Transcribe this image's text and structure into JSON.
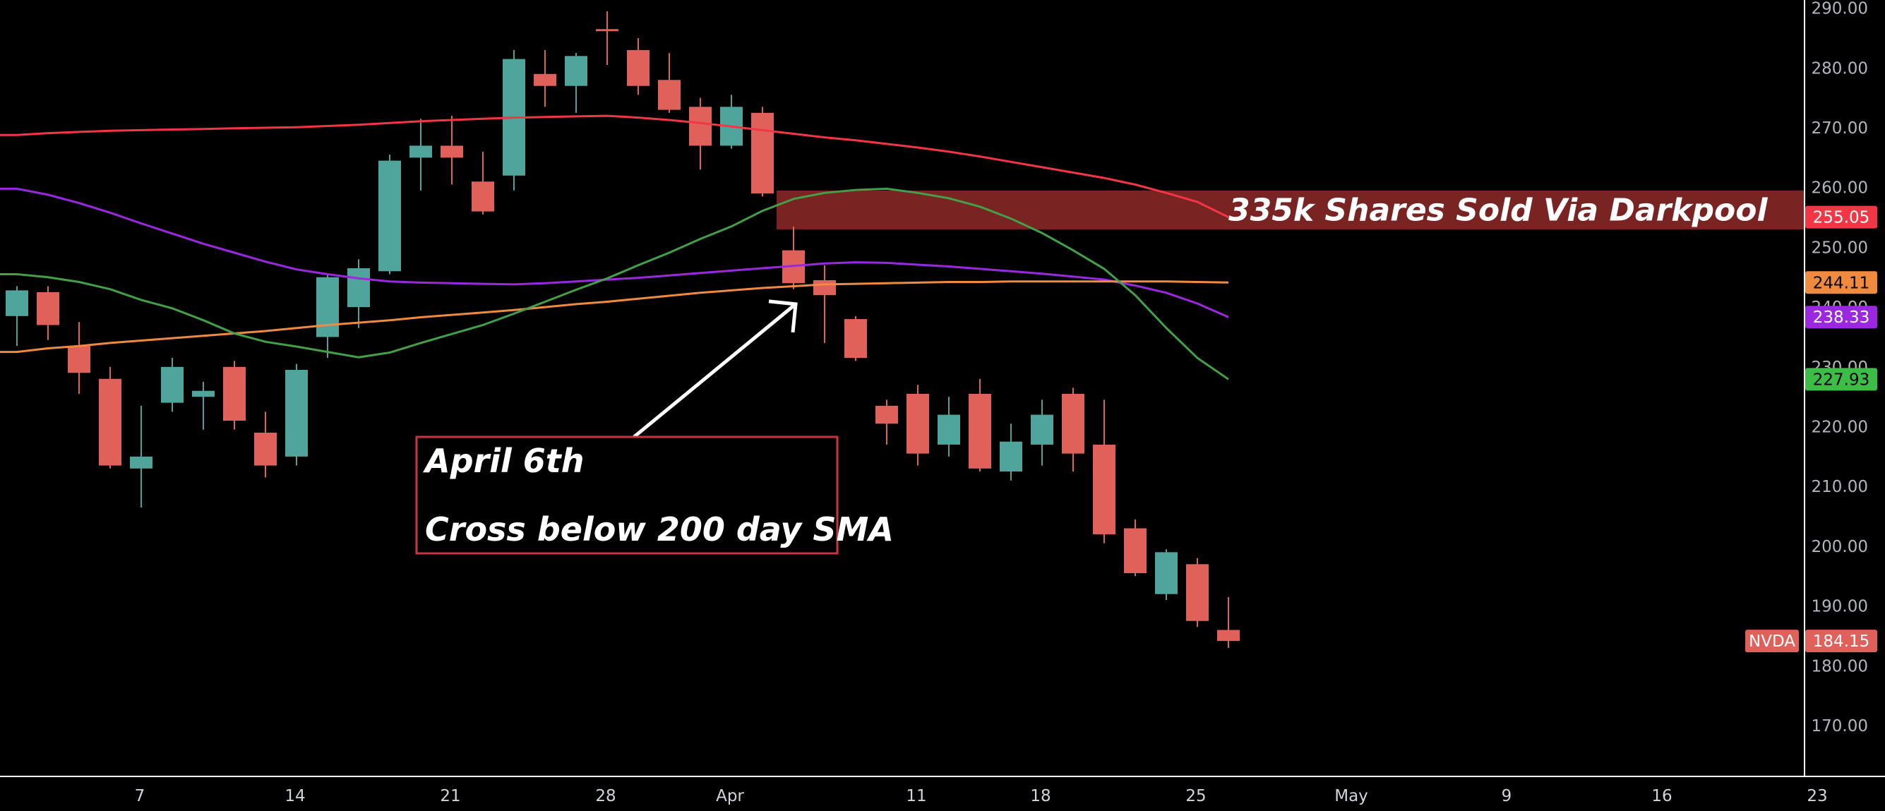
{
  "chart_data": {
    "type": "candlestick",
    "symbol": "NVDA",
    "last_price": "184.15",
    "ylim": [
      162,
      292
    ],
    "y_ticks": [
      "170.00",
      "180.00",
      "190.00",
      "200.00",
      "210.00",
      "220.00",
      "230.00",
      "240.00",
      "250.00",
      "260.00",
      "270.00",
      "280.00",
      "290.00"
    ],
    "x_ticks": [
      {
        "label": "7",
        "index": 4
      },
      {
        "label": "14",
        "index": 9
      },
      {
        "label": "21",
        "index": 14
      },
      {
        "label": "28",
        "index": 19
      },
      {
        "label": "Apr",
        "index": 23
      },
      {
        "label": "11",
        "index": 29
      },
      {
        "label": "18",
        "index": 33
      },
      {
        "label": "25",
        "index": 38
      },
      {
        "label": "May",
        "index": 43
      },
      {
        "label": "9",
        "index": 48
      },
      {
        "label": "16",
        "index": 53
      },
      {
        "label": "23",
        "index": 58
      }
    ],
    "candles": [
      {
        "o": 238.5,
        "h": 243.5,
        "l": 233.5,
        "c": 242.8
      },
      {
        "o": 242.5,
        "h": 243.5,
        "l": 234.5,
        "c": 237.0
      },
      {
        "o": 233.5,
        "h": 237.5,
        "l": 225.5,
        "c": 229.0
      },
      {
        "o": 228.0,
        "h": 230.0,
        "l": 213.0,
        "c": 213.5
      },
      {
        "o": 213.0,
        "h": 223.5,
        "l": 206.5,
        "c": 215.0
      },
      {
        "o": 224.0,
        "h": 231.5,
        "l": 222.5,
        "c": 230.0
      },
      {
        "o": 225.0,
        "h": 227.5,
        "l": 219.5,
        "c": 226.0
      },
      {
        "o": 230.0,
        "h": 231.0,
        "l": 219.5,
        "c": 221.0
      },
      {
        "o": 219.0,
        "h": 222.5,
        "l": 211.5,
        "c": 213.5
      },
      {
        "o": 215.0,
        "h": 230.5,
        "l": 213.5,
        "c": 229.5
      },
      {
        "o": 235.0,
        "h": 245.5,
        "l": 231.5,
        "c": 245.0
      },
      {
        "o": 240.0,
        "h": 248.0,
        "l": 236.5,
        "c": 246.5
      },
      {
        "o": 246.0,
        "h": 265.5,
        "l": 245.5,
        "c": 264.5
      },
      {
        "o": 265.0,
        "h": 271.5,
        "l": 259.5,
        "c": 267.0
      },
      {
        "o": 267.0,
        "h": 272.0,
        "l": 260.5,
        "c": 265.0
      },
      {
        "o": 261.0,
        "h": 266.0,
        "l": 255.5,
        "c": 256.0
      },
      {
        "o": 262.0,
        "h": 283.0,
        "l": 259.5,
        "c": 281.5
      },
      {
        "o": 279.0,
        "h": 283.0,
        "l": 273.5,
        "c": 277.0
      },
      {
        "o": 277.0,
        "h": 282.5,
        "l": 272.5,
        "c": 282.0
      },
      {
        "o": 286.5,
        "h": 289.5,
        "l": 280.5,
        "c": 286.3
      },
      {
        "o": 283.0,
        "h": 285.0,
        "l": 275.5,
        "c": 277.0
      },
      {
        "o": 278.0,
        "h": 282.5,
        "l": 272.5,
        "c": 273.0
      },
      {
        "o": 273.5,
        "h": 275.0,
        "l": 263.0,
        "c": 267.0
      },
      {
        "o": 267.0,
        "h": 275.5,
        "l": 266.5,
        "c": 273.5
      },
      {
        "o": 272.5,
        "h": 273.5,
        "l": 258.5,
        "c": 259.0
      },
      {
        "o": 249.5,
        "h": 253.5,
        "l": 243.0,
        "c": 244.0
      },
      {
        "o": 244.5,
        "h": 247.0,
        "l": 234.0,
        "c": 242.0
      },
      {
        "o": 238.0,
        "h": 238.5,
        "l": 231.0,
        "c": 231.5
      },
      {
        "o": 223.5,
        "h": 224.5,
        "l": 217.0,
        "c": 220.5
      },
      {
        "o": 225.5,
        "h": 227.0,
        "l": 213.5,
        "c": 215.5
      },
      {
        "o": 217.0,
        "h": 225.0,
        "l": 215.0,
        "c": 222.0
      },
      {
        "o": 225.5,
        "h": 228.0,
        "l": 212.5,
        "c": 213.0
      },
      {
        "o": 212.5,
        "h": 220.5,
        "l": 211.0,
        "c": 217.5
      },
      {
        "o": 217.0,
        "h": 224.5,
        "l": 213.5,
        "c": 222.0
      },
      {
        "o": 225.5,
        "h": 226.5,
        "l": 212.5,
        "c": 215.5
      },
      {
        "o": 217.0,
        "h": 224.5,
        "l": 200.5,
        "c": 202.0
      },
      {
        "o": 203.0,
        "h": 204.5,
        "l": 195.0,
        "c": 195.5
      },
      {
        "o": 192.0,
        "h": 199.5,
        "l": 191.0,
        "c": 199.0
      },
      {
        "o": 197.0,
        "h": 198.0,
        "l": 186.5,
        "c": 187.5
      },
      {
        "o": 186.0,
        "h": 191.5,
        "l": 183.0,
        "c": 184.15
      }
    ],
    "series": [
      {
        "color": "#f23645",
        "end_label": "255.05",
        "values": [
          268.8,
          269.1,
          269.3,
          269.5,
          269.6,
          269.7,
          269.8,
          269.9,
          270.0,
          270.1,
          270.3,
          270.5,
          270.8,
          271.1,
          271.3,
          271.5,
          271.7,
          271.8,
          271.9,
          272.0,
          271.7,
          271.3,
          270.8,
          270.2,
          269.6,
          269.0,
          268.4,
          267.9,
          267.3,
          266.7,
          266.0,
          265.2,
          264.3,
          263.4,
          262.5,
          261.6,
          260.5,
          259.1,
          257.6,
          255.05
        ]
      },
      {
        "color": "#9c27e0",
        "end_label": "238.33",
        "values": [
          259.8,
          258.8,
          257.4,
          255.8,
          254.0,
          252.3,
          250.6,
          249.1,
          247.6,
          246.3,
          245.5,
          244.8,
          244.3,
          244.1,
          244.0,
          243.9,
          243.8,
          244.0,
          244.3,
          244.6,
          244.9,
          245.3,
          245.7,
          246.1,
          246.5,
          246.9,
          247.3,
          247.5,
          247.4,
          247.1,
          246.8,
          246.4,
          246.0,
          245.6,
          245.1,
          244.6,
          243.6,
          242.4,
          240.6,
          238.33
        ]
      },
      {
        "color": "#f08a3e",
        "end_label": "244.11",
        "values": [
          232.5,
          233.1,
          233.5,
          234.0,
          234.4,
          234.8,
          235.2,
          235.6,
          236.0,
          236.5,
          237.0,
          237.4,
          237.8,
          238.3,
          238.7,
          239.1,
          239.5,
          240.0,
          240.5,
          240.9,
          241.4,
          241.9,
          242.4,
          242.8,
          243.2,
          243.5,
          243.8,
          243.9,
          244.0,
          244.1,
          244.2,
          244.2,
          244.3,
          244.3,
          244.3,
          244.3,
          244.3,
          244.3,
          244.2,
          244.11
        ]
      },
      {
        "color": "#43a047",
        "end_label": "227.93",
        "values": [
          245.5,
          245.0,
          244.2,
          243.0,
          241.2,
          239.8,
          237.8,
          235.6,
          234.2,
          233.4,
          232.5,
          231.6,
          232.4,
          234.0,
          235.5,
          237.0,
          238.9,
          240.9,
          242.9,
          244.8,
          247.0,
          249.1,
          251.4,
          253.5,
          256.1,
          258.1,
          259.1,
          259.6,
          259.8,
          259.1,
          258.2,
          256.8,
          254.8,
          252.4,
          249.5,
          246.4,
          242.0,
          236.5,
          231.5,
          227.93
        ]
      }
    ],
    "zone": {
      "label": "335k Shares Sold Via Darkpool",
      "y_top": 259.5,
      "y_bottom": 253.0,
      "x_start": 24.5
    },
    "annotation": {
      "lines": [
        "April 6th",
        "Cross below 200 day SMA"
      ],
      "arrow_target": {
        "index": 25,
        "y": 240.5
      }
    }
  }
}
